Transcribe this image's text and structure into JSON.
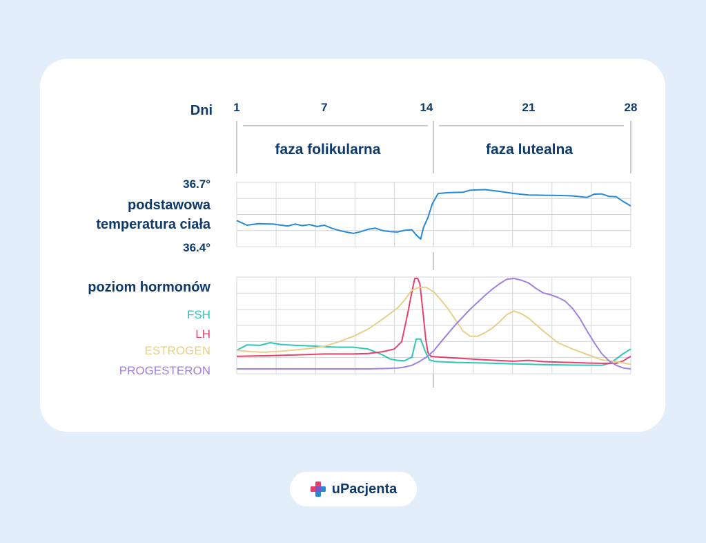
{
  "chart_data": {
    "type": "line",
    "x_axis": {
      "title": "Dni",
      "ticks": [
        1,
        7,
        14,
        21,
        28
      ],
      "range": [
        1,
        28
      ]
    },
    "phases": [
      {
        "label": "faza folikularna",
        "start": 1,
        "end": 14
      },
      {
        "label": "faza lutealna",
        "start": 14,
        "end": 28
      }
    ],
    "temperature_panel": {
      "title_line1": "podstawowa",
      "title_line2": "temperatura ciała",
      "y_max_label": "36.7°",
      "y_min_label": "36.4°",
      "ylim": [
        36.4,
        36.7
      ],
      "series": {
        "name": "temperatura",
        "color": "#2788d8",
        "x": [
          1,
          1.7,
          2.5,
          3.5,
          4.5,
          5,
          5.5,
          6,
          6.5,
          7,
          7.5,
          8,
          8.5,
          9,
          9.5,
          10,
          10.5,
          11,
          11.5,
          12,
          12.5,
          13,
          13.3,
          13.6,
          13.8,
          14.1,
          14.4,
          14.8,
          15.5,
          16.5,
          17,
          18,
          19,
          20,
          21,
          22,
          23,
          24,
          25,
          25.5,
          26,
          26.5,
          27,
          27.5,
          28
        ],
        "y": [
          36.522,
          36.5,
          36.507,
          36.505,
          36.496,
          36.505,
          36.498,
          36.503,
          36.494,
          36.5,
          36.486,
          36.476,
          36.468,
          36.462,
          36.47,
          36.481,
          36.486,
          36.475,
          36.47,
          36.468,
          36.476,
          36.479,
          36.455,
          36.435,
          36.49,
          36.535,
          36.6,
          36.648,
          36.652,
          36.654,
          36.664,
          36.666,
          36.658,
          36.648,
          36.641,
          36.64,
          36.639,
          36.637,
          36.63,
          36.645,
          36.646,
          36.635,
          36.633,
          36.61,
          36.59
        ]
      }
    },
    "hormone_panel": {
      "title": "poziom hormonów",
      "ylim": [
        0,
        1
      ],
      "series": [
        {
          "name": "FSH",
          "color": "#2ec6b8",
          "x": [
            1,
            1.7,
            2.6,
            3.3,
            4,
            5,
            6,
            7,
            8,
            9,
            10,
            11,
            11.5,
            12,
            12.5,
            13,
            13.3,
            13.6,
            13.9,
            14.2,
            14.6,
            15.2,
            16,
            18,
            20,
            22,
            24,
            26,
            26.5,
            27,
            27.5,
            28
          ],
          "y": [
            0.205,
            0.265,
            0.26,
            0.29,
            0.27,
            0.26,
            0.255,
            0.245,
            0.24,
            0.24,
            0.22,
            0.155,
            0.11,
            0.095,
            0.09,
            0.13,
            0.33,
            0.33,
            0.2,
            0.1,
            0.082,
            0.078,
            0.072,
            0.065,
            0.055,
            0.048,
            0.042,
            0.04,
            0.06,
            0.11,
            0.17,
            0.22
          ]
        },
        {
          "name": "LH",
          "color": "#e83e6c",
          "x": [
            1,
            3,
            5,
            7,
            9,
            10,
            11,
            11.8,
            12.3,
            12.7,
            13,
            13.2,
            13.4,
            13.55,
            13.75,
            13.95,
            14.1,
            14.3,
            14.5,
            15,
            16,
            18,
            20,
            21,
            22,
            24,
            25,
            26,
            27,
            27.5,
            28
          ],
          "y": [
            0.14,
            0.145,
            0.155,
            0.165,
            0.165,
            0.17,
            0.19,
            0.22,
            0.3,
            0.6,
            0.85,
            1.0,
            1.0,
            0.94,
            0.65,
            0.33,
            0.18,
            0.14,
            0.135,
            0.13,
            0.12,
            0.1,
            0.085,
            0.095,
            0.08,
            0.07,
            0.065,
            0.062,
            0.062,
            0.09,
            0.14
          ]
        },
        {
          "name": "ESTROGEN",
          "color": "#e6cf88",
          "x": [
            1,
            2,
            3,
            4,
            5,
            6,
            7,
            8,
            9,
            10,
            11,
            12,
            12.5,
            13,
            13.5,
            14,
            14.5,
            15,
            15.5,
            16,
            16.5,
            17,
            17.5,
            18,
            18.5,
            19,
            19.5,
            20,
            20.5,
            21,
            22,
            23,
            24,
            25,
            26,
            27,
            28
          ],
          "y": [
            0.205,
            0.19,
            0.185,
            0.195,
            0.21,
            0.225,
            0.25,
            0.3,
            0.36,
            0.44,
            0.55,
            0.67,
            0.76,
            0.87,
            0.9,
            0.9,
            0.85,
            0.76,
            0.66,
            0.54,
            0.42,
            0.36,
            0.36,
            0.4,
            0.45,
            0.52,
            0.6,
            0.64,
            0.61,
            0.56,
            0.42,
            0.29,
            0.22,
            0.16,
            0.1,
            0.08,
            0.05
          ]
        },
        {
          "name": "PROGESTERON",
          "color": "#a080de",
          "x": [
            1,
            5,
            10,
            11.5,
            12,
            12.5,
            13,
            13.5,
            14,
            14.5,
            15,
            16,
            17,
            18,
            18.5,
            19,
            19.5,
            20,
            20.5,
            21,
            21.5,
            22,
            22.5,
            23,
            23.5,
            24,
            24.5,
            25,
            25.5,
            26,
            26.5,
            27,
            27.5,
            28
          ],
          "y": [
            0.0,
            0.0,
            0.0,
            0.005,
            0.01,
            0.02,
            0.04,
            0.08,
            0.13,
            0.2,
            0.3,
            0.49,
            0.66,
            0.81,
            0.88,
            0.94,
            0.99,
            1.0,
            0.98,
            0.95,
            0.89,
            0.84,
            0.82,
            0.79,
            0.75,
            0.67,
            0.56,
            0.42,
            0.29,
            0.17,
            0.09,
            0.04,
            0.01,
            0.0
          ]
        }
      ]
    }
  },
  "logo": {
    "name": "uPacjenta"
  }
}
